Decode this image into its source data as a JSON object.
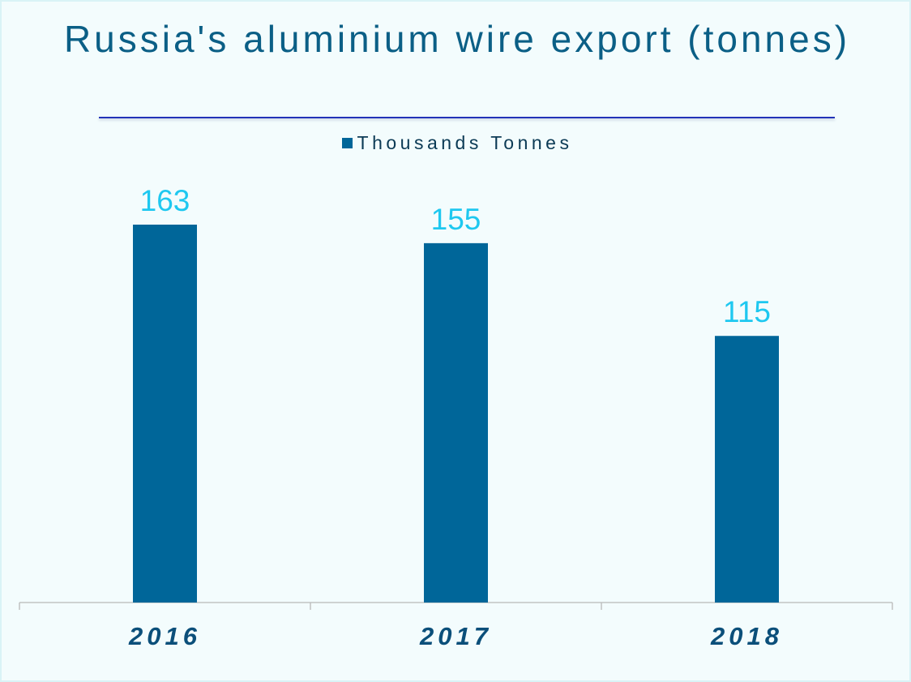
{
  "chart_data": {
    "type": "bar",
    "title": "Russia's aluminium wire export (tonnes)",
    "categories": [
      "2016",
      "2017",
      "2018"
    ],
    "series": [
      {
        "name": "Thousands Tonnes",
        "values": [
          163,
          155,
          115
        ],
        "color": "#006699"
      }
    ],
    "data_labels": [
      "163",
      "155",
      "115"
    ],
    "ylim": [
      0,
      180
    ],
    "grid": false,
    "legend": "top-center",
    "colors": {
      "bar": "#006699",
      "data_label": "#1ec8f0",
      "axis_label": "#0b4f7a",
      "title": "#0b5f86"
    }
  }
}
